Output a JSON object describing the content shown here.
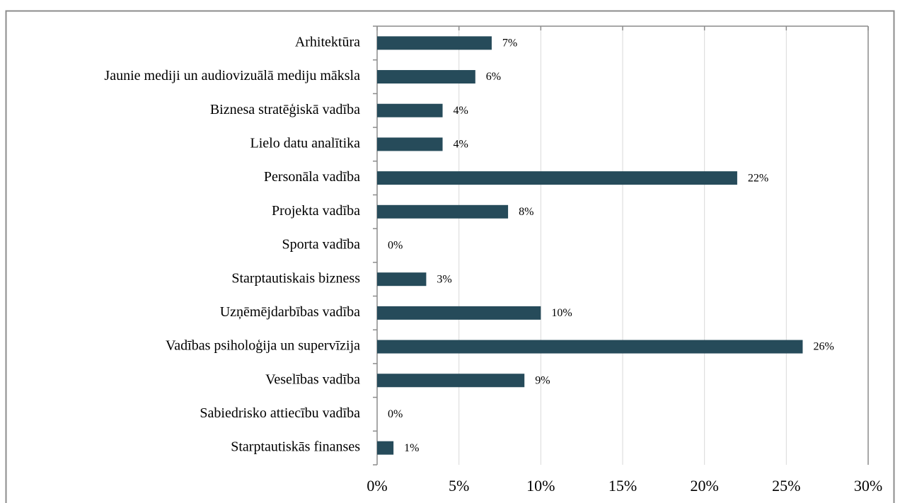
{
  "chart_data": {
    "type": "bar",
    "orientation": "horizontal",
    "categories": [
      "Arhitektūra",
      "Jaunie mediji un audiovizuālā mediju māksla",
      "Biznesa stratēģiskā vadība",
      "Lielo datu analītika",
      "Personāla vadība",
      "Projekta vadība",
      "Sporta vadība",
      "Starptautiskais bizness",
      "Uzņēmējdarbības vadība",
      "Vadības psiholoģija un supervīzija",
      "Veselības vadība",
      "Sabiedrisko attiecību vadība",
      "Starptautiskās finanses"
    ],
    "values": [
      7,
      6,
      4,
      4,
      22,
      8,
      0,
      3,
      10,
      26,
      9,
      0,
      1
    ],
    "value_labels": [
      "7%",
      "6%",
      "4%",
      "4%",
      "22%",
      "8%",
      "0%",
      "3%",
      "10%",
      "26%",
      "9%",
      "0%",
      "1%"
    ],
    "color": "#264b5a",
    "xlim": [
      0,
      30
    ],
    "xticks": [
      {
        "value": 0,
        "label": "0%"
      },
      {
        "value": 5,
        "label": "5%"
      },
      {
        "value": 10,
        "label": "10%"
      },
      {
        "value": 15,
        "label": "15%"
      },
      {
        "value": 20,
        "label": "20%"
      },
      {
        "value": 25,
        "label": "25%"
      },
      {
        "value": 30,
        "label": "30%"
      }
    ],
    "grid": true
  }
}
